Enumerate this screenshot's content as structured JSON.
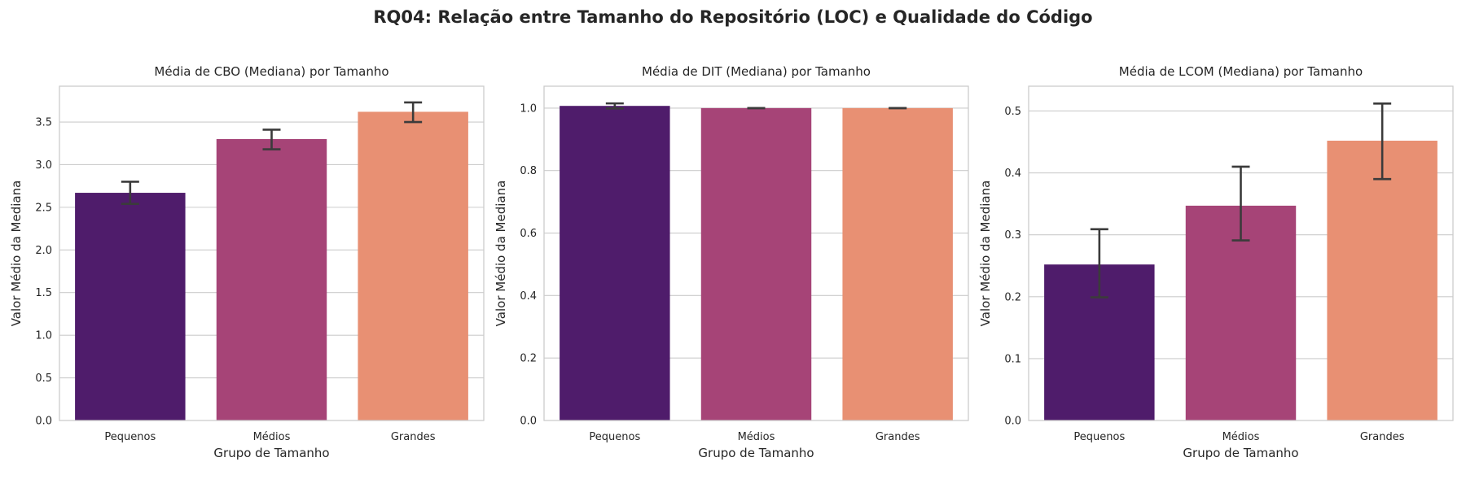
{
  "figure": {
    "title": "RQ04: Relação entre Tamanho do Repositório (LOC) e Qualidade do Código"
  },
  "chart_data": [
    {
      "type": "bar",
      "title": "Média de CBO (Mediana) por Tamanho",
      "xlabel": "Grupo de Tamanho",
      "ylabel": "Valor Médio da Mediana",
      "categories": [
        "Pequenos",
        "Médios",
        "Grandes"
      ],
      "values": [
        2.67,
        3.3,
        3.62
      ],
      "error_low": [
        2.54,
        3.18,
        3.5
      ],
      "error_high": [
        2.8,
        3.41,
        3.73
      ],
      "ylim": [
        0,
        3.92
      ],
      "yticks": [
        0.0,
        0.5,
        1.0,
        1.5,
        2.0,
        2.5,
        3.0,
        3.5
      ],
      "ytick_labels": [
        "0.0",
        "0.5",
        "1.0",
        "1.5",
        "2.0",
        "2.5",
        "3.0",
        "3.5"
      ],
      "colors": [
        "#4f1c6b",
        "#a64477",
        "#e89073"
      ],
      "grid": "y"
    },
    {
      "type": "bar",
      "title": "Média de DIT (Mediana) por Tamanho",
      "xlabel": "Grupo de Tamanho",
      "ylabel": "Valor Médio da Mediana",
      "categories": [
        "Pequenos",
        "Médios",
        "Grandes"
      ],
      "values": [
        1.007,
        1.0,
        1.0
      ],
      "error_low": [
        0.999,
        1.0,
        1.0
      ],
      "error_high": [
        1.015,
        1.0,
        1.0
      ],
      "ylim": [
        0,
        1.07
      ],
      "yticks": [
        0.0,
        0.2,
        0.4,
        0.6,
        0.8,
        1.0
      ],
      "ytick_labels": [
        "0.0",
        "0.2",
        "0.4",
        "0.6",
        "0.8",
        "1.0"
      ],
      "colors": [
        "#4f1c6b",
        "#a64477",
        "#e89073"
      ],
      "grid": "y"
    },
    {
      "type": "bar",
      "title": "Média de LCOM (Mediana) por Tamanho",
      "xlabel": "Grupo de Tamanho",
      "ylabel": "Valor Médio da Mediana",
      "categories": [
        "Pequenos",
        "Médios",
        "Grandes"
      ],
      "values": [
        0.252,
        0.347,
        0.452
      ],
      "error_low": [
        0.199,
        0.291,
        0.39
      ],
      "error_high": [
        0.309,
        0.41,
        0.512
      ],
      "ylim": [
        0,
        0.54
      ],
      "yticks": [
        0.0,
        0.1,
        0.2,
        0.3,
        0.4,
        0.5
      ],
      "ytick_labels": [
        "0.0",
        "0.1",
        "0.2",
        "0.3",
        "0.4",
        "0.5"
      ],
      "colors": [
        "#4f1c6b",
        "#a64477",
        "#e89073"
      ],
      "grid": "y"
    }
  ]
}
